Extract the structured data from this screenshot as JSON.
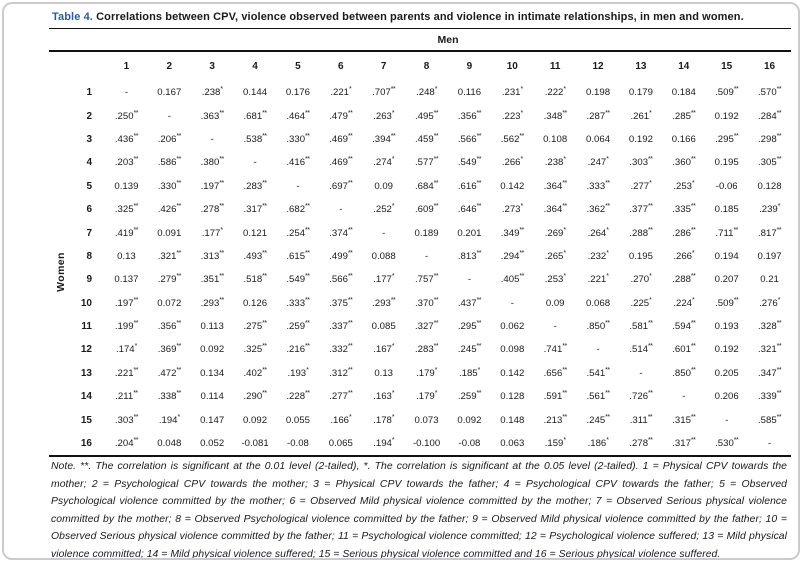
{
  "page": {
    "title_prefix": "Table 4.",
    "title_text": " Correlations between CPV, violence observed between parents and violence in intimate relationships, in men and women."
  },
  "table": {
    "col_group_label": "Men",
    "row_group_label": "Women",
    "columns": [
      "1",
      "2",
      "3",
      "4",
      "5",
      "6",
      "7",
      "8",
      "9",
      "10",
      "11",
      "12",
      "13",
      "14",
      "15",
      "16"
    ],
    "rows": [
      {
        "label": "1",
        "values": [
          "-",
          "0.167",
          ".238*",
          "0.144",
          "0.176",
          ".221*",
          ".707**",
          ".248*",
          "0.116",
          ".231*",
          ".222*",
          "0.198",
          "0.179",
          "0.184",
          ".509**",
          ".570**"
        ]
      },
      {
        "label": "2",
        "values": [
          ".250**",
          "-",
          ".363**",
          ".681**",
          ".464**",
          ".479**",
          ".263*",
          ".495**",
          ".356**",
          ".223*",
          ".348**",
          ".287**",
          ".261*",
          ".285**",
          "0.192",
          ".284**"
        ]
      },
      {
        "label": "3",
        "values": [
          ".436**",
          ".206**",
          "-",
          ".538**",
          ".330**",
          ".469**",
          ".394**",
          ".459**",
          ".566**",
          ".562**",
          "0.108",
          "0.064",
          "0.192",
          "0.166",
          ".295**",
          ".298**"
        ]
      },
      {
        "label": "4",
        "values": [
          ".203**",
          ".586**",
          ".380**",
          "-",
          ".416**",
          ".469**",
          ".274*",
          ".577**",
          ".549**",
          ".266*",
          ".238*",
          ".247*",
          ".303**",
          ".360**",
          "0.195",
          ".305**"
        ]
      },
      {
        "label": "5",
        "values": [
          "0.139",
          ".330**",
          ".197**",
          ".283**",
          "-",
          ".697**",
          "0.09",
          ".684**",
          ".616**",
          "0.142",
          ".364**",
          ".333**",
          ".277*",
          ".253*",
          "-0.06",
          "0.128"
        ]
      },
      {
        "label": "6",
        "values": [
          ".325**",
          ".426**",
          ".278**",
          ".317**",
          ".682**",
          "-",
          ".252*",
          ".609**",
          ".646**",
          ".273*",
          ".364**",
          ".362**",
          ".377**",
          ".335**",
          "0.185",
          ".239*"
        ]
      },
      {
        "label": "7",
        "values": [
          ".419**",
          "0.091",
          ".177*",
          "0.121",
          ".254**",
          ".374**",
          "-",
          "0.189",
          "0.201",
          ".349**",
          ".269*",
          ".264*",
          ".288**",
          ".286**",
          ".711**",
          ".817**"
        ]
      },
      {
        "label": "8",
        "values": [
          "0.13",
          ".321**",
          ".313**",
          ".493**",
          ".615**",
          ".499**",
          "0.088",
          "-",
          ".813**",
          ".294**",
          ".265*",
          ".232*",
          "0.195",
          ".266*",
          "0.194",
          "0.197"
        ]
      },
      {
        "label": "9",
        "values": [
          "0.137",
          ".279**",
          ".351**",
          ".518**",
          ".549**",
          ".566**",
          ".177*",
          ".757**",
          "-",
          ".405**",
          ".253*",
          ".221*",
          ".270*",
          ".288**",
          "0.207",
          "0.21"
        ]
      },
      {
        "label": "10",
        "values": [
          ".197**",
          "0.072",
          ".293**",
          "0.126",
          ".333**",
          ".375**",
          ".293**",
          ".370**",
          ".437**",
          "-",
          "0.09",
          "0.068",
          ".225*",
          ".224*",
          ".509**",
          ".276*"
        ]
      },
      {
        "label": "11",
        "values": [
          ".199**",
          ".356**",
          "0.113",
          ".275**",
          ".259**",
          ".337**",
          "0.085",
          ".327**",
          ".295**",
          "0.062",
          "-",
          ".850**",
          ".581**",
          ".594**",
          "0.193",
          ".328**"
        ]
      },
      {
        "label": "12",
        "values": [
          ".174*",
          ".369**",
          "0.092",
          ".325**",
          ".216**",
          ".332**",
          ".167*",
          ".283**",
          ".245**",
          "0.098",
          ".741**",
          "-",
          ".514**",
          ".601**",
          "0.192",
          ".321**"
        ]
      },
      {
        "label": "13",
        "values": [
          ".221**",
          ".472**",
          "0.134",
          ".402**",
          ".193*",
          ".312**",
          "0.13",
          ".179*",
          ".185*",
          "0.142",
          ".656**",
          ".541**",
          "-",
          ".850**",
          "0.205",
          ".347**"
        ]
      },
      {
        "label": "14",
        "values": [
          ".211**",
          ".338**",
          "0.114",
          ".290**",
          ".228**",
          ".277**",
          ".163*",
          ".179*",
          ".259**",
          "0.128",
          ".591**",
          ".561**",
          ".726**",
          "-",
          "0.206",
          ".339**"
        ]
      },
      {
        "label": "15",
        "values": [
          ".303**",
          ".194*",
          "0.147",
          "0.092",
          "0.055",
          ".166*",
          ".178*",
          "0.073",
          "0.092",
          "0.148",
          ".213**",
          ".245**",
          ".311**",
          ".315**",
          "-",
          ".585**"
        ]
      },
      {
        "label": "16",
        "values": [
          ".204**",
          "0.048",
          "0.052",
          "-0.081",
          "-0.08",
          "0.065",
          ".194*",
          "-0.100",
          "-0.08",
          "0.063",
          ".159*",
          ".186*",
          ".278**",
          ".317**",
          ".530**",
          "-"
        ]
      }
    ]
  },
  "note": {
    "text": "Note. **. The correlation is significant at the 0.01 level (2-tailed), *. The correlation is significant at the 0.05 level (2-tailed). 1 = Physical CPV towards the mother; 2 = Psychological CPV towards the mother; 3 = Physical CPV towards the father; 4 = Psychological CPV towards the father; 5 = Observed Psychological violence committed by the mother; 6 = Observed Mild physical violence committed by the mother; 7 = Observed Serious physical violence committed by the mother; 8 = Observed Psychological violence committed by the father; 9 = Observed Mild physical violence committed by the father; 10 = Observed Serious physical violence committed by the father; 11 = Psychological violence committed; 12 = Psychological violence suffered; 13 = Mild physical violence committed; 14 = Mild physical violence suffered; 15 = Serious physical violence committed and 16 = Serious physical violence suffered."
  }
}
